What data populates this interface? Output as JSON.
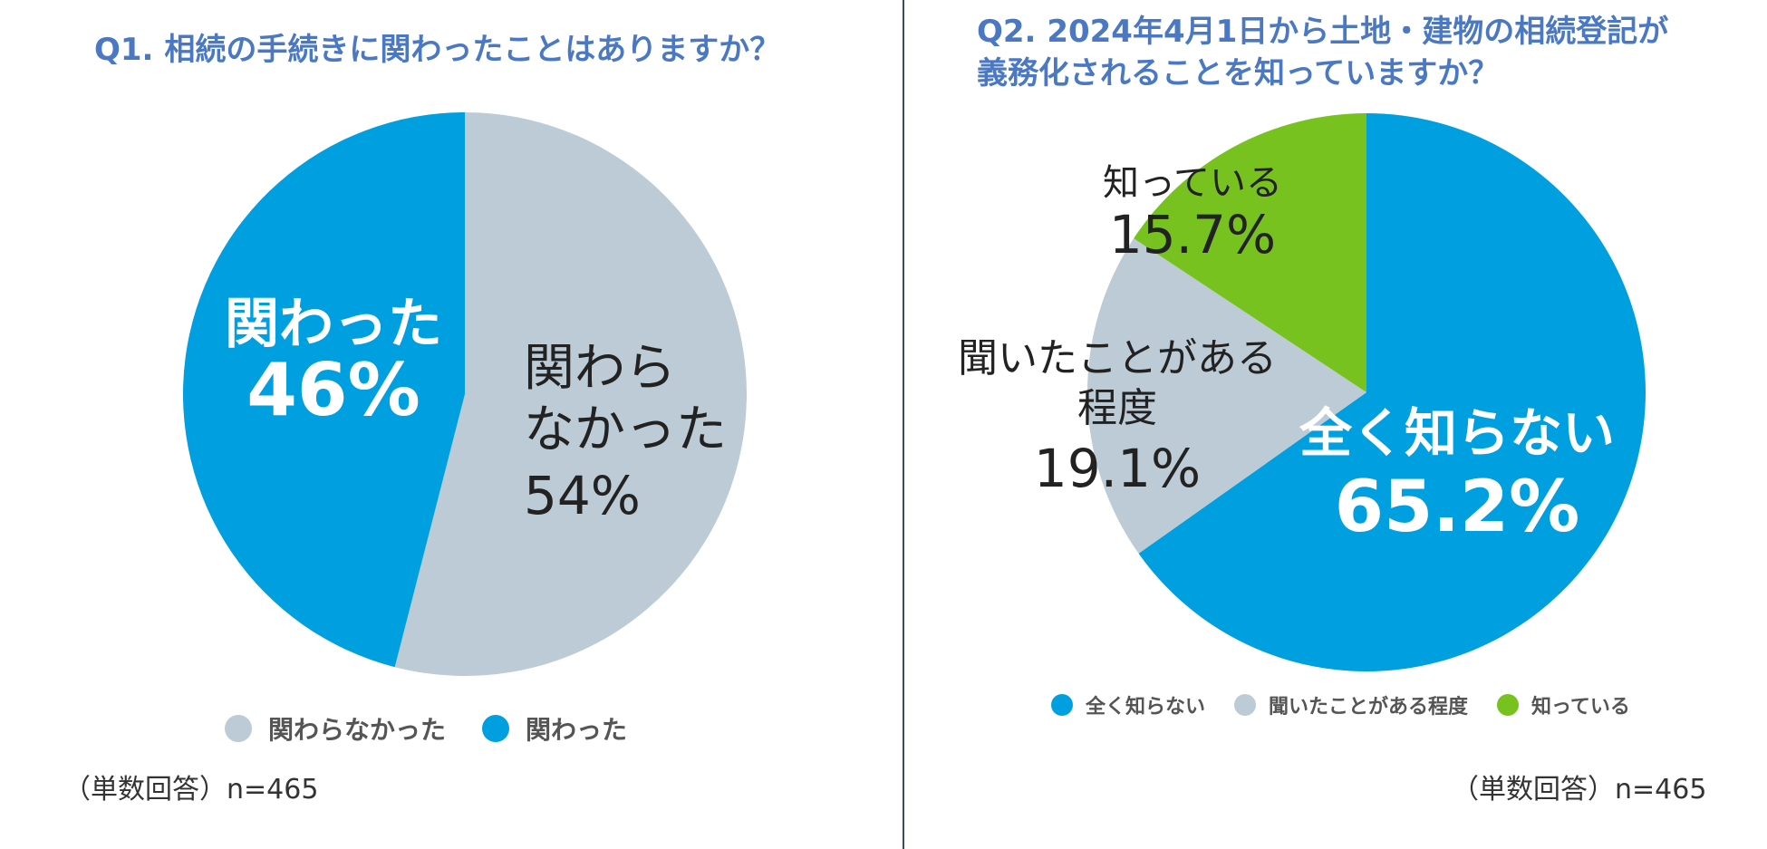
{
  "chart_data": [
    {
      "type": "pie",
      "title": "Q1. 相続の手続きに関わったことはありますか？",
      "categories": [
        "関わらなかった",
        "関わった"
      ],
      "values": [
        54,
        46
      ],
      "colors": [
        "#bccbd5",
        "#009fdf"
      ],
      "slice_labels": [
        {
          "lines": [
            "関わら",
            "なかった"
          ],
          "value": "54%",
          "color": "#222222",
          "bold": false
        },
        {
          "lines": [
            "関わった"
          ],
          "value": "46%",
          "color": "#ffffff",
          "bold": true
        }
      ],
      "legend": [
        "関わらなかった",
        "関わった"
      ],
      "legend_placement": "bottom",
      "note": "（単数回答）n=465"
    },
    {
      "type": "pie",
      "title_lines": [
        "Q2.  2024年4月1日から土地・建物の相続登記が",
        "義務化されることを知っていますか？"
      ],
      "categories": [
        "全く知らない",
        "聞いたことがある程度",
        "知っている"
      ],
      "values": [
        65.2,
        19.1,
        15.7
      ],
      "colors": [
        "#009fdf",
        "#bccbd5",
        "#78c21f"
      ],
      "slice_labels": [
        {
          "lines": [
            "全く知らない"
          ],
          "value": "65.2%",
          "color": "#ffffff",
          "bold": true
        },
        {
          "lines": [
            "聞いたことがある",
            "程度"
          ],
          "value": "19.1%",
          "color": "#222222",
          "bold": false
        },
        {
          "lines": [
            "知っている"
          ],
          "value": "15.7%",
          "color": "#222222",
          "bold": false
        }
      ],
      "legend": [
        "全く知らない",
        "聞いたことがある程度",
        "知っている"
      ],
      "legend_placement": "bottom",
      "note": "（単数回答）n=465"
    }
  ]
}
